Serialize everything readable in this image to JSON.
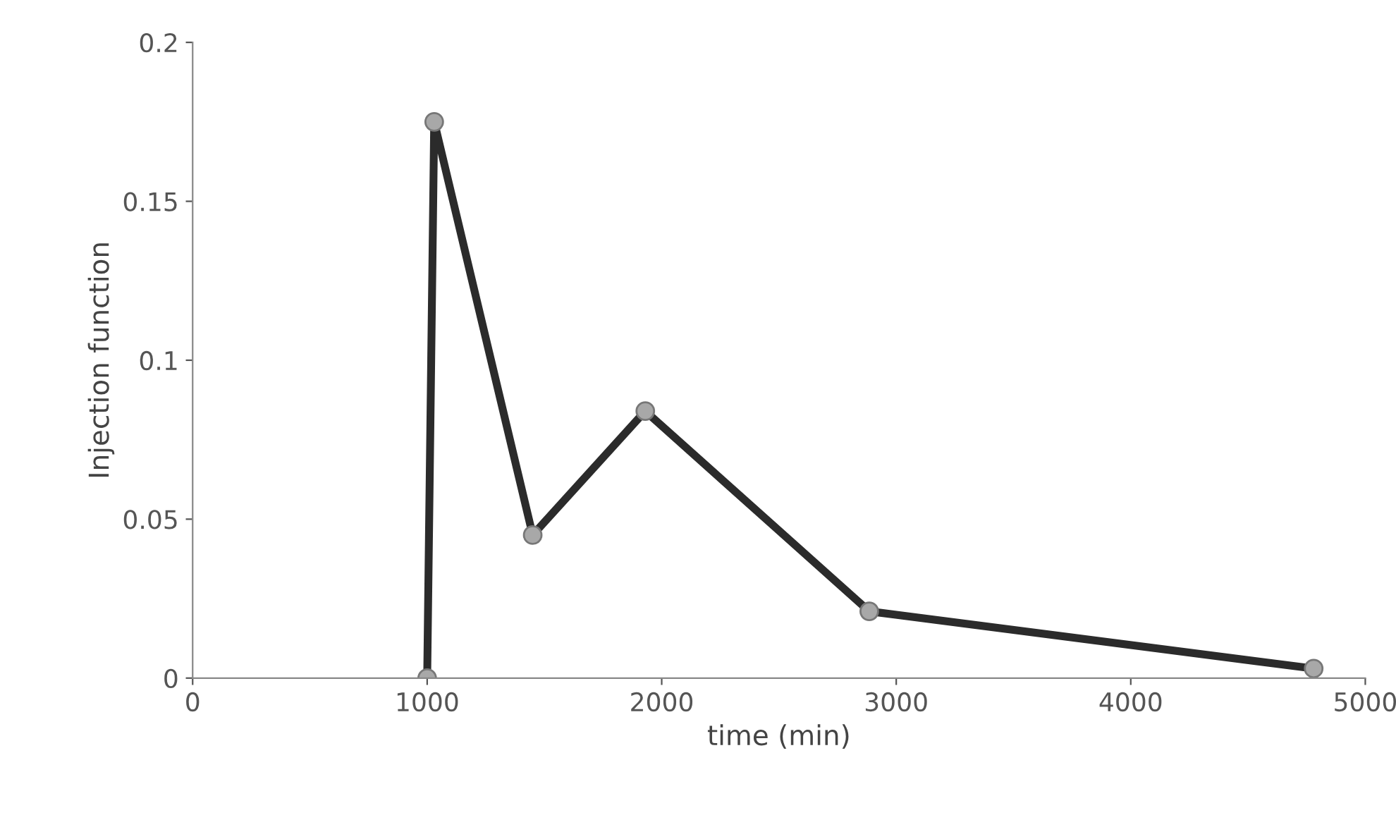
{
  "chart_data": {
    "type": "line",
    "xlabel": "time (min)",
    "ylabel": "Injection function",
    "x": [
      1000,
      1030,
      1450,
      1930,
      2885,
      4780
    ],
    "series": [
      {
        "color": "#2b2b2b",
        "values": [
          0,
          0.175,
          0.045,
          0.084,
          0.021,
          0.003
        ]
      }
    ],
    "xlim": [
      0,
      5000
    ],
    "xticks": [
      0,
      1000,
      2000,
      3000,
      4000,
      5000
    ],
    "ylim": [
      0,
      0.2
    ],
    "yticks": [
      0,
      0.05,
      0.1,
      0.15,
      0.2
    ],
    "marker": "circle",
    "line_style": "solid",
    "grid": false,
    "legend": false
  }
}
